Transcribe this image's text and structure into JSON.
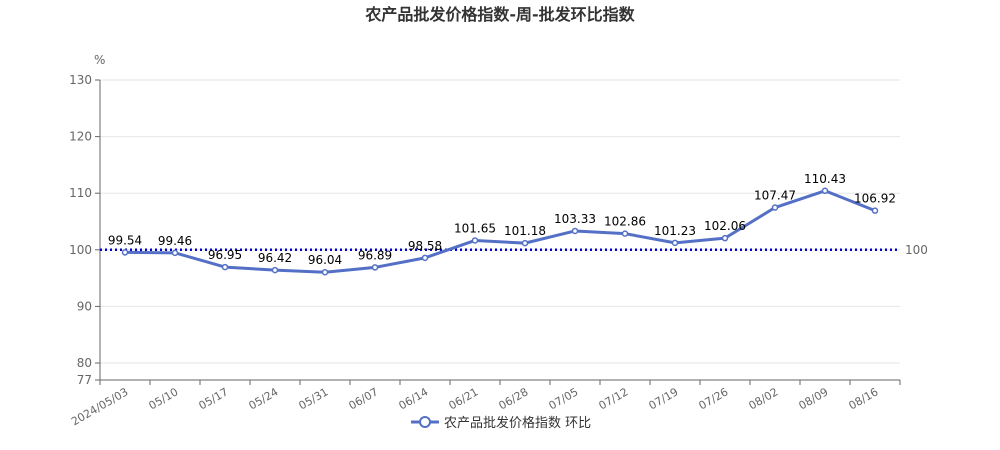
{
  "chart_data": {
    "type": "line",
    "title": "农产品批发价格指数-周-批发环比指数",
    "ylabel": "%",
    "ylim": [
      77,
      130
    ],
    "yticks": [
      77,
      80,
      90,
      100,
      110,
      120,
      130
    ],
    "categories": [
      "2024/05/03",
      "05/10",
      "05/17",
      "05/24",
      "05/31",
      "06/07",
      "06/14",
      "06/21",
      "06/28",
      "07/05",
      "07/12",
      "07/19",
      "07/26",
      "08/02",
      "08/09",
      "08/16"
    ],
    "series": [
      {
        "name": "农产品批发价格指数 环比",
        "values": [
          99.54,
          99.46,
          96.95,
          96.42,
          96.04,
          96.89,
          98.58,
          101.65,
          101.18,
          103.33,
          102.86,
          101.23,
          102.06,
          107.47,
          110.43,
          106.92
        ],
        "color": "#5470c6"
      }
    ],
    "reference_line": {
      "value": 100,
      "label": "100",
      "color": "#0000cc",
      "style": "dotted"
    },
    "grid": true,
    "legend_position": "bottom"
  }
}
